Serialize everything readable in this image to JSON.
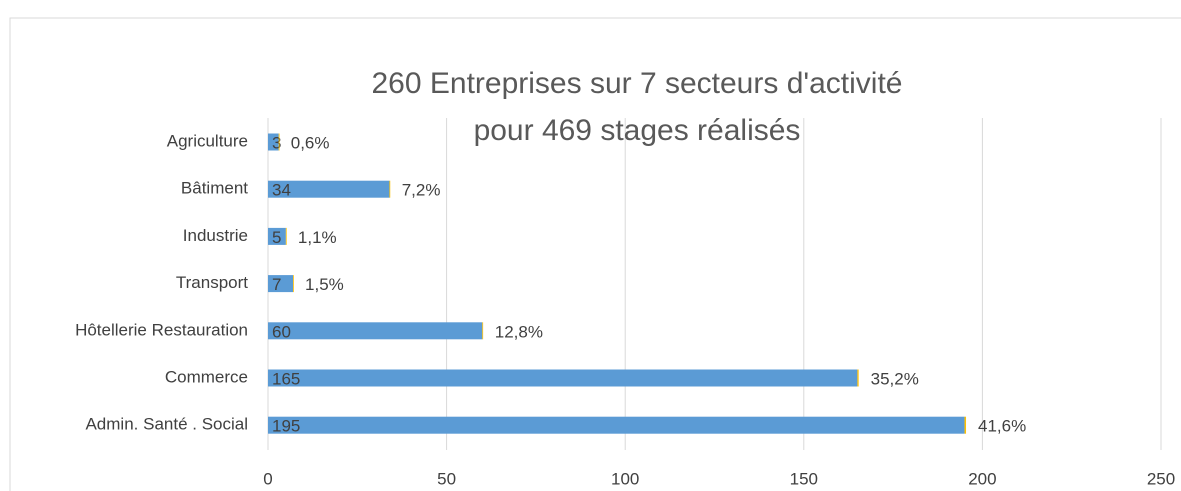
{
  "chart_data": {
    "type": "bar",
    "orientation": "horizontal",
    "stacked": true,
    "title": [
      "260 Entreprises sur 7 secteurs d'activité",
      "pour 469 stages réalisés"
    ],
    "categories": [
      "Agriculture",
      "Bâtiment",
      "Industrie",
      "Transport",
      "Hôtellerie Restauration",
      "Commerce",
      "Admin. Santé . Social"
    ],
    "series": [
      {
        "color": "#5b9bd5",
        "values": [
          3,
          34,
          5,
          7,
          60,
          165,
          195
        ]
      },
      {
        "color": "#ffc000",
        "values": [
          0.006,
          0.072,
          0.011,
          0.015,
          0.128,
          0.352,
          0.416
        ],
        "value_labels": [
          "0,6%",
          "7,2%",
          "1,1%",
          "1,5%",
          "12,8%",
          "35,2%",
          "41,6%"
        ]
      }
    ],
    "xlim": [
      0,
      250
    ],
    "xticks": [
      0,
      50,
      100,
      150,
      200,
      250
    ],
    "grid": true
  }
}
